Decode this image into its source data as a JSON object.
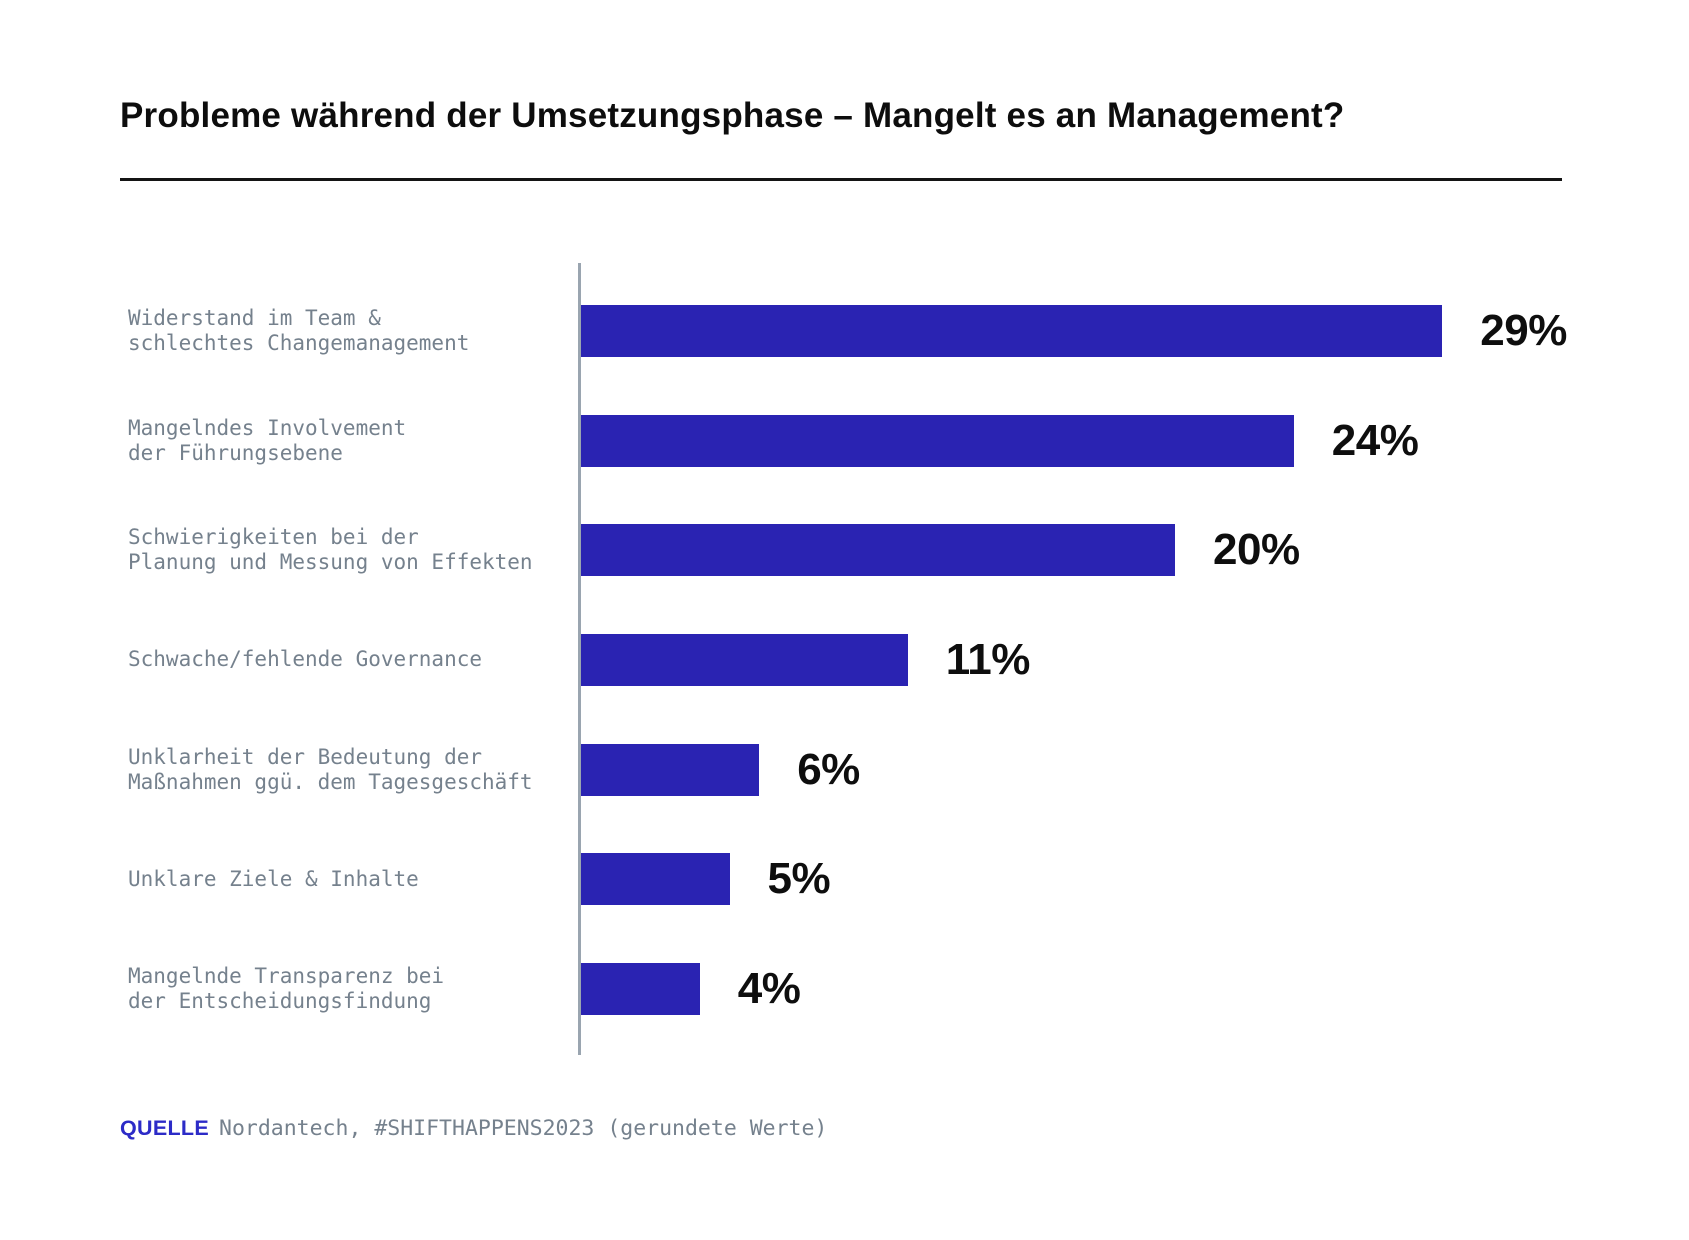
{
  "title": "Probleme während der Umsetzungsphase – Mangelt es an Management?",
  "source": {
    "label": "QUELLE",
    "text": "Nordantech, #SHIFTHAPPENS2023 (gerundete Werte)"
  },
  "colors": {
    "bar": "#2a23b2",
    "accent": "#2c2bc7",
    "label_gray": "#75818d",
    "axis_gray": "#9aa5b0",
    "title_black": "#0d0d0d"
  },
  "chart_data": {
    "type": "bar",
    "orientation": "horizontal",
    "unit": "%",
    "title": "Probleme während der Umsetzungsphase – Mangelt es an Management?",
    "categories": [
      "Widerstand im Team &\nschlechtes Changemanagement",
      "Mangelndes Involvement\nder Führungsebene",
      "Schwierigkeiten bei der\nPlanung und Messung von Effekten",
      "Schwache/fehlende Governance",
      "Unklarheit der Bedeutung der\nMaßnahmen ggü. dem Tagesgeschäft",
      "Unklare Ziele & Inhalte",
      "Mangelnde Transparenz bei\nder Entscheidungsfindung"
    ],
    "values": [
      29,
      24,
      20,
      11,
      6,
      5,
      4
    ],
    "value_labels": [
      "29%",
      "24%",
      "20%",
      "11%",
      "6%",
      "5%",
      "4%"
    ],
    "xlim": [
      0,
      29
    ],
    "grid": false,
    "legend": false,
    "value_label_position": "right-of-bar",
    "source_note": "QUELLE Nordantech, #SHIFTHAPPENS2023 (gerundete Werte)"
  }
}
